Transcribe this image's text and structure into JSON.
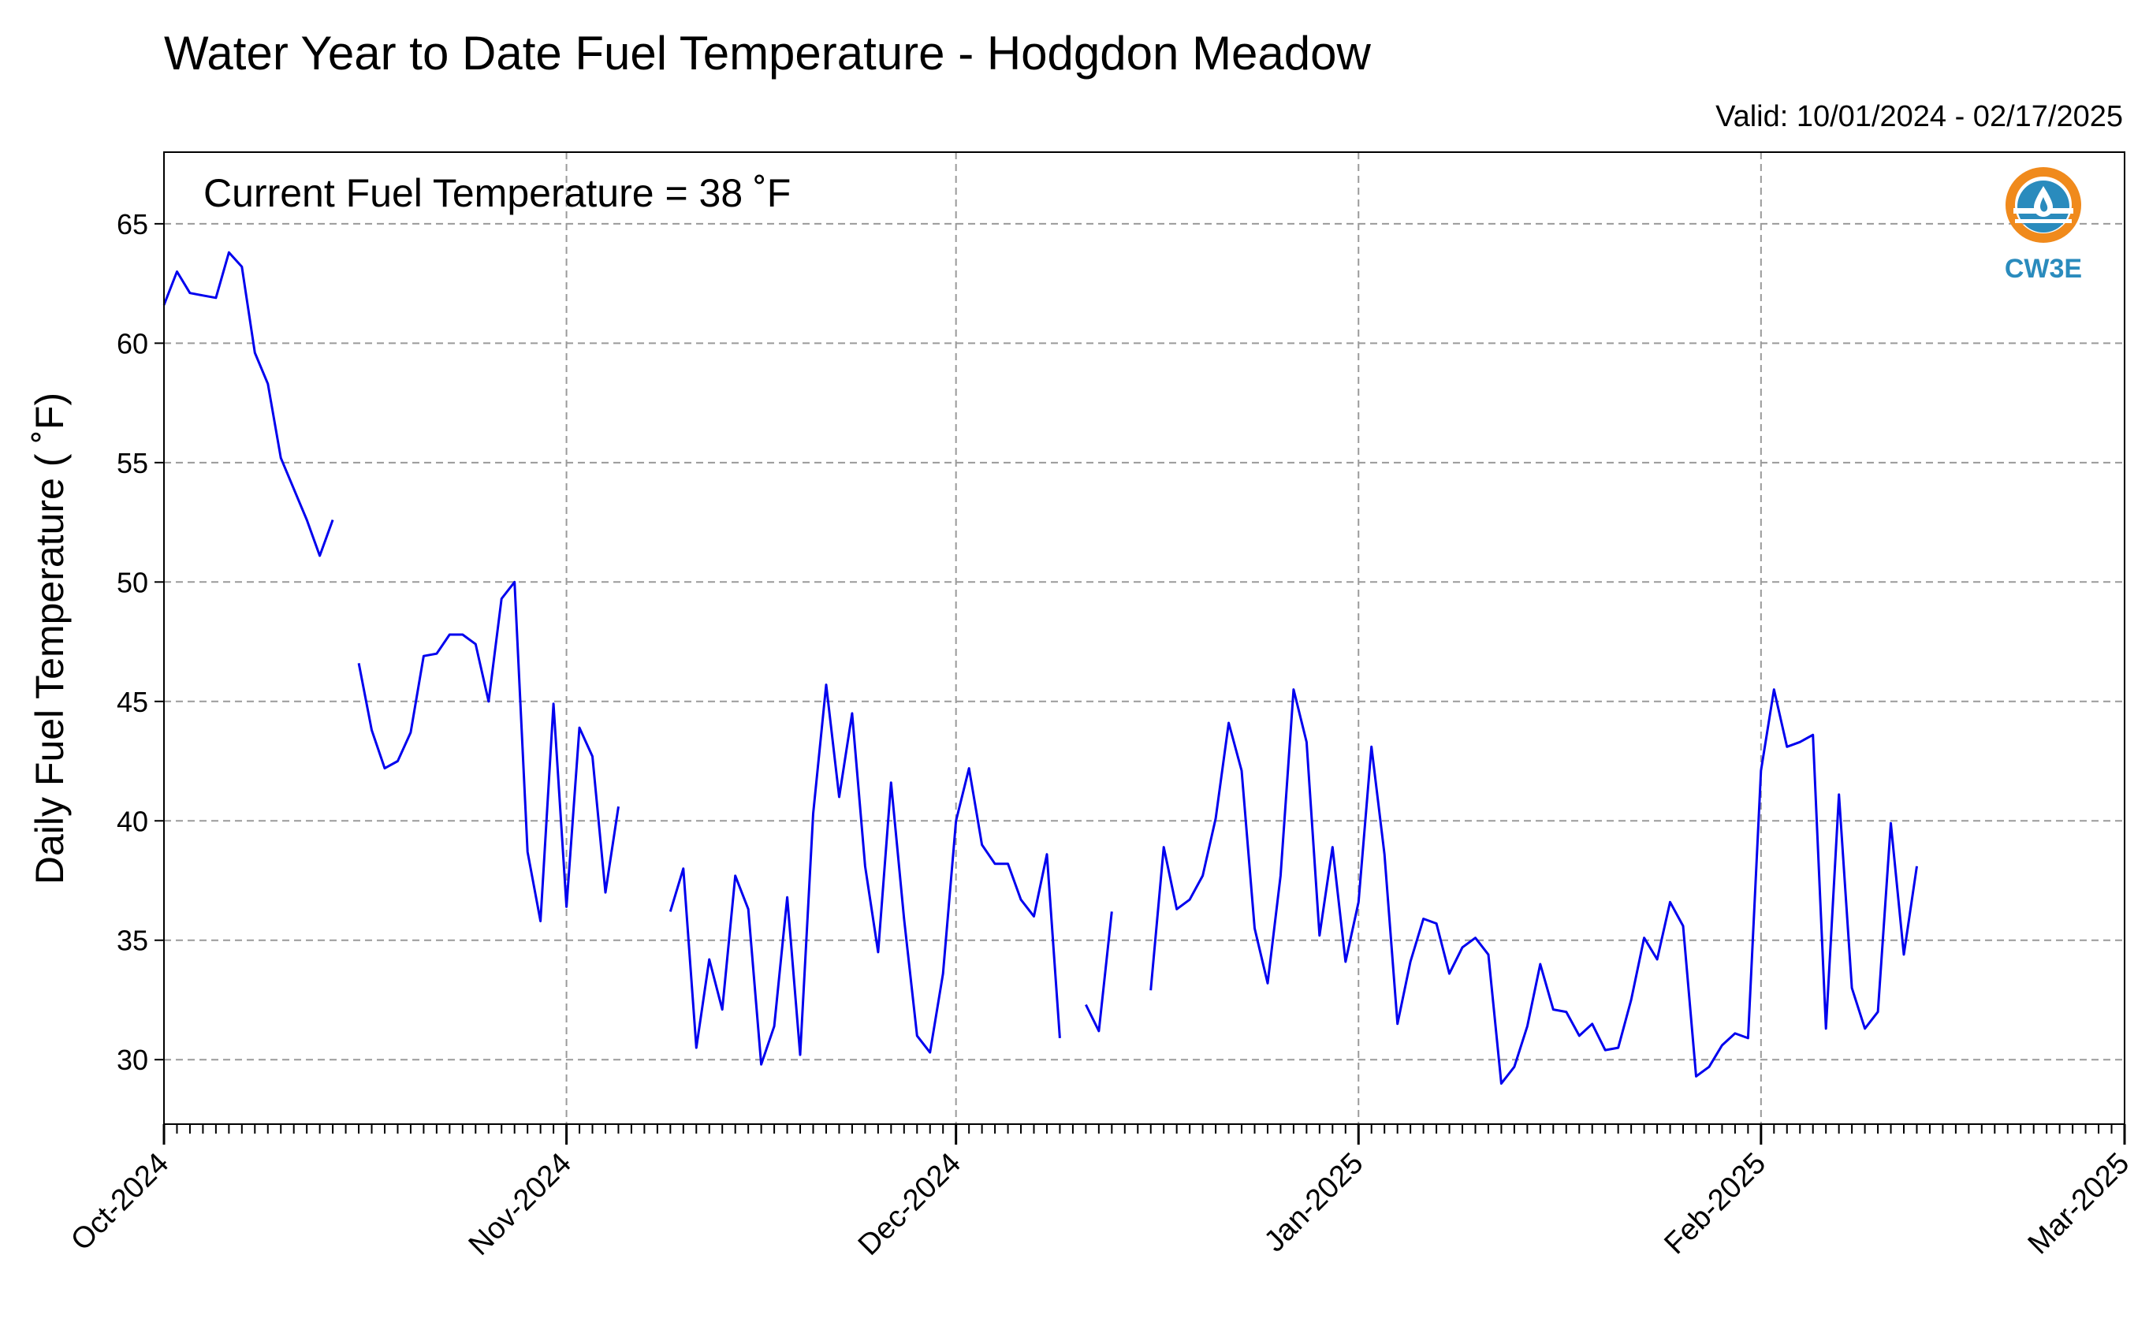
{
  "chart_data": {
    "type": "line",
    "title": "Water Year to Date Fuel Temperature - Hodgdon Meadow",
    "subtitle": "Valid: 10/01/2024 - 02/17/2025",
    "ylabel": "Daily Fuel Temperature ( ˚F)",
    "xlabel": "",
    "annotation": "Current Fuel Temperature = 38 ˚F",
    "logo_text": "CW3E",
    "ylim": [
      27.3,
      68.0
    ],
    "yticks": [
      30,
      35,
      40,
      45,
      50,
      55,
      60,
      65
    ],
    "xlim": [
      "2024-10-01",
      "2025-03-01"
    ],
    "xticks": [
      {
        "date": "2024-10-01",
        "label": "Oct-2024"
      },
      {
        "date": "2024-11-01",
        "label": "Nov-2024"
      },
      {
        "date": "2024-12-01",
        "label": "Dec-2024"
      },
      {
        "date": "2025-01-01",
        "label": "Jan-2025"
      },
      {
        "date": "2025-02-01",
        "label": "Feb-2025"
      },
      {
        "date": "2025-03-01",
        "label": "Mar-2025"
      }
    ],
    "grid": true,
    "line_color": "#0000ee",
    "series": [
      {
        "values": [
          [
            "2024-10-01",
            61.6
          ],
          [
            "2024-10-02",
            63.0
          ],
          [
            "2024-10-03",
            62.1
          ],
          [
            "2024-10-04",
            62.0
          ],
          [
            "2024-10-05",
            61.9
          ],
          [
            "2024-10-06",
            63.8
          ],
          [
            "2024-10-07",
            63.2
          ],
          [
            "2024-10-08",
            59.6
          ],
          [
            "2024-10-09",
            58.3
          ],
          [
            "2024-10-10",
            55.2
          ],
          [
            "2024-10-11",
            53.9
          ],
          [
            "2024-10-12",
            52.6
          ],
          [
            "2024-10-13",
            51.1
          ],
          [
            "2024-10-14",
            52.6
          ],
          null,
          [
            "2024-10-16",
            46.6
          ],
          [
            "2024-10-17",
            43.8
          ],
          [
            "2024-10-18",
            42.2
          ],
          [
            "2024-10-19",
            42.5
          ],
          [
            "2024-10-20",
            43.7
          ],
          [
            "2024-10-21",
            46.9
          ],
          [
            "2024-10-22",
            47.0
          ],
          [
            "2024-10-23",
            47.8
          ],
          [
            "2024-10-24",
            47.8
          ],
          [
            "2024-10-25",
            47.4
          ],
          [
            "2024-10-26",
            45.0
          ],
          [
            "2024-10-27",
            49.3
          ],
          [
            "2024-10-28",
            50.0
          ],
          [
            "2024-10-29",
            38.7
          ],
          [
            "2024-10-30",
            35.8
          ],
          [
            "2024-10-31",
            44.9
          ],
          [
            "2024-11-01",
            36.4
          ],
          [
            "2024-11-02",
            43.9
          ],
          [
            "2024-11-03",
            42.7
          ],
          [
            "2024-11-04",
            37.0
          ],
          [
            "2024-11-05",
            40.6
          ],
          null,
          [
            "2024-11-09",
            36.2
          ],
          [
            "2024-11-10",
            38.0
          ],
          [
            "2024-11-11",
            30.5
          ],
          [
            "2024-11-12",
            34.2
          ],
          [
            "2024-11-13",
            32.1
          ],
          [
            "2024-11-14",
            37.7
          ],
          [
            "2024-11-15",
            36.3
          ],
          [
            "2024-11-16",
            29.8
          ],
          [
            "2024-11-17",
            31.4
          ],
          [
            "2024-11-18",
            36.8
          ],
          [
            "2024-11-19",
            30.2
          ],
          [
            "2024-11-20",
            40.3
          ],
          [
            "2024-11-21",
            45.7
          ],
          [
            "2024-11-22",
            41.0
          ],
          [
            "2024-11-23",
            44.5
          ],
          [
            "2024-11-24",
            38.1
          ],
          [
            "2024-11-25",
            34.5
          ],
          [
            "2024-11-26",
            41.6
          ],
          [
            "2024-11-27",
            35.9
          ],
          [
            "2024-11-28",
            31.0
          ],
          [
            "2024-11-29",
            30.3
          ],
          [
            "2024-11-30",
            33.6
          ],
          [
            "2024-12-01",
            40.0
          ],
          [
            "2024-12-02",
            42.2
          ],
          [
            "2024-12-03",
            39.0
          ],
          [
            "2024-12-04",
            38.2
          ],
          [
            "2024-12-05",
            38.2
          ],
          [
            "2024-12-06",
            36.7
          ],
          [
            "2024-12-07",
            36.0
          ],
          [
            "2024-12-08",
            38.6
          ],
          [
            "2024-12-09",
            30.9
          ],
          null,
          [
            "2024-12-11",
            32.3
          ],
          [
            "2024-12-12",
            31.2
          ],
          [
            "2024-12-13",
            36.2
          ],
          null,
          [
            "2024-12-16",
            32.9
          ],
          [
            "2024-12-17",
            38.9
          ],
          [
            "2024-12-18",
            36.3
          ],
          [
            "2024-12-19",
            36.7
          ],
          [
            "2024-12-20",
            37.7
          ],
          [
            "2024-12-21",
            40.1
          ],
          [
            "2024-12-22",
            44.1
          ],
          [
            "2024-12-23",
            42.1
          ],
          [
            "2024-12-24",
            35.5
          ],
          [
            "2024-12-25",
            33.2
          ],
          [
            "2024-12-26",
            37.7
          ],
          [
            "2024-12-27",
            45.5
          ],
          [
            "2024-12-28",
            43.3
          ],
          [
            "2024-12-29",
            35.2
          ],
          [
            "2024-12-30",
            38.9
          ],
          [
            "2024-12-31",
            34.1
          ],
          [
            "2025-01-01",
            36.6
          ],
          [
            "2025-01-02",
            43.1
          ],
          [
            "2025-01-03",
            38.6
          ],
          [
            "2025-01-04",
            31.5
          ],
          [
            "2025-01-05",
            34.1
          ],
          [
            "2025-01-06",
            35.9
          ],
          [
            "2025-01-07",
            35.7
          ],
          [
            "2025-01-08",
            33.6
          ],
          [
            "2025-01-09",
            34.7
          ],
          [
            "2025-01-10",
            35.1
          ],
          [
            "2025-01-11",
            34.4
          ],
          [
            "2025-01-12",
            29.0
          ],
          [
            "2025-01-13",
            29.7
          ],
          [
            "2025-01-14",
            31.4
          ],
          [
            "2025-01-15",
            34.0
          ],
          [
            "2025-01-16",
            32.1
          ],
          [
            "2025-01-17",
            32.0
          ],
          [
            "2025-01-18",
            31.0
          ],
          [
            "2025-01-19",
            31.5
          ],
          [
            "2025-01-20",
            30.4
          ],
          [
            "2025-01-21",
            30.5
          ],
          [
            "2025-01-22",
            32.5
          ],
          [
            "2025-01-23",
            35.1
          ],
          [
            "2025-01-24",
            34.2
          ],
          [
            "2025-01-25",
            36.6
          ],
          [
            "2025-01-26",
            35.6
          ],
          [
            "2025-01-27",
            29.3
          ],
          [
            "2025-01-28",
            29.7
          ],
          [
            "2025-01-29",
            30.6
          ],
          [
            "2025-01-30",
            31.1
          ],
          [
            "2025-01-31",
            30.9
          ],
          [
            "2025-02-01",
            42.1
          ],
          [
            "2025-02-02",
            45.5
          ],
          [
            "2025-02-03",
            43.1
          ],
          [
            "2025-02-04",
            43.3
          ],
          [
            "2025-02-05",
            43.6
          ],
          [
            "2025-02-06",
            31.3
          ],
          [
            "2025-02-07",
            41.1
          ],
          [
            "2025-02-08",
            33.0
          ],
          [
            "2025-02-09",
            31.3
          ],
          [
            "2025-02-10",
            32.0
          ],
          [
            "2025-02-11",
            39.9
          ],
          [
            "2025-02-12",
            34.4
          ],
          [
            "2025-02-13",
            38.1
          ]
        ]
      }
    ]
  }
}
